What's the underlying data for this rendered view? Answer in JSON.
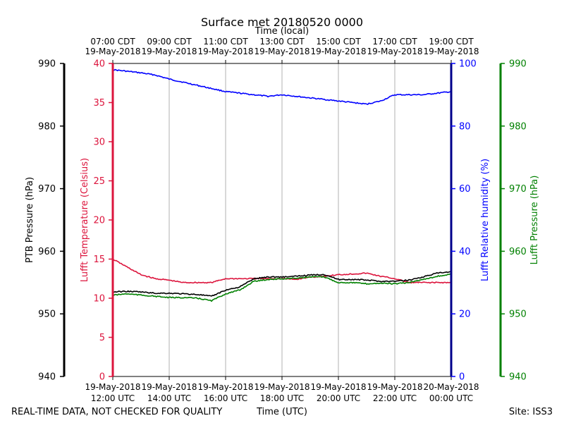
{
  "chart_data": {
    "type": "line",
    "title": "Surface met 20180520 0000",
    "top_axis_label": "Time (local)",
    "bottom_axis_label": "Time (UTC)",
    "footer_left": "REAL-TIME DATA, NOT CHECKED FOR QUALITY",
    "footer_right": "Site: ISS3",
    "x_range_hours_utc": [
      12,
      24
    ],
    "top_ticks": [
      {
        "hour": 12,
        "line1": "07:00 CDT",
        "line2": "19-May-2018"
      },
      {
        "hour": 14,
        "line1": "09:00 CDT",
        "line2": "19-May-2018"
      },
      {
        "hour": 16,
        "line1": "11:00 CDT",
        "line2": "19-May-2018"
      },
      {
        "hour": 18,
        "line1": "13:00 CDT",
        "line2": "19-May-2018"
      },
      {
        "hour": 20,
        "line1": "15:00 CDT",
        "line2": "19-May-2018"
      },
      {
        "hour": 22,
        "line1": "17:00 CDT",
        "line2": "19-May-2018"
      },
      {
        "hour": 24,
        "line1": "19:00 CDT",
        "line2": "19-May-2018"
      }
    ],
    "bottom_ticks": [
      {
        "hour": 12,
        "line1": "19-May-2018",
        "line2": "12:00 UTC"
      },
      {
        "hour": 14,
        "line1": "19-May-2018",
        "line2": "14:00 UTC"
      },
      {
        "hour": 16,
        "line1": "19-May-2018",
        "line2": "16:00 UTC"
      },
      {
        "hour": 18,
        "line1": "19-May-2018",
        "line2": "18:00 UTC"
      },
      {
        "hour": 20,
        "line1": "19-May-2018",
        "line2": "20:00 UTC"
      },
      {
        "hour": 22,
        "line1": "19-May-2018",
        "line2": "22:00 UTC"
      },
      {
        "hour": 24,
        "line1": "20-May-2018",
        "line2": "00:00 UTC"
      }
    ],
    "axes": {
      "ptb_pressure": {
        "label": "PTB Pressure (hPa)",
        "range": [
          940,
          990
        ],
        "ticks": [
          940,
          950,
          960,
          970,
          980,
          990
        ],
        "color": "#000000"
      },
      "temperature": {
        "label": "Lufft Temperature (Celsius)",
        "range": [
          0,
          40
        ],
        "ticks": [
          0,
          5,
          10,
          15,
          20,
          25,
          30,
          35,
          40
        ],
        "color": "#dc143c"
      },
      "humidity": {
        "label": "Lufft Relative humidity (%)",
        "range": [
          0,
          100
        ],
        "ticks": [
          0,
          20,
          40,
          60,
          80,
          100
        ],
        "color": "#0000ff"
      },
      "lufft_pressure": {
        "label": "Lufft Pressure (hPa)",
        "range": [
          940,
          990
        ],
        "ticks": [
          940,
          950,
          960,
          970,
          980,
          990
        ],
        "color": "#008000"
      }
    },
    "series": [
      {
        "name": "Lufft Relative humidity",
        "axis": "humidity",
        "color": "#0000ff",
        "x": [
          12.0,
          12.5,
          13.0,
          13.5,
          14.0,
          14.5,
          15.0,
          15.5,
          16.0,
          16.5,
          17.0,
          17.5,
          18.0,
          18.5,
          19.0,
          19.5,
          20.0,
          20.5,
          21.0,
          21.5,
          22.0,
          22.5,
          23.0,
          23.5,
          24.0
        ],
        "values": [
          98,
          97.5,
          97,
          96.3,
          95,
          94,
          93,
          92,
          91,
          90.5,
          90,
          89.5,
          90,
          89.5,
          89,
          88.5,
          88,
          87.5,
          87,
          88,
          90,
          90,
          90,
          90.5,
          91
        ]
      },
      {
        "name": "Lufft Temperature",
        "axis": "temperature",
        "color": "#dc143c",
        "x": [
          12.0,
          12.5,
          13.0,
          13.5,
          14.0,
          14.5,
          15.0,
          15.5,
          16.0,
          16.5,
          17.0,
          17.5,
          18.0,
          18.5,
          19.0,
          19.5,
          20.0,
          20.5,
          21.0,
          21.5,
          22.0,
          22.5,
          23.0,
          23.5,
          24.0
        ],
        "values": [
          15,
          14,
          13,
          12.5,
          12.3,
          12,
          12,
          12,
          12.5,
          12.5,
          12.5,
          12.5,
          12.5,
          12.4,
          12.7,
          12.8,
          13,
          13.1,
          13.2,
          12.8,
          12.5,
          12,
          12,
          12,
          12
        ]
      },
      {
        "name": "PTB Pressure",
        "axis": "ptb_pressure",
        "color": "#000000",
        "x": [
          12.0,
          12.5,
          13.0,
          13.5,
          14.0,
          14.5,
          15.0,
          15.5,
          16.0,
          16.5,
          17.0,
          17.5,
          18.0,
          18.5,
          19.0,
          19.5,
          20.0,
          20.5,
          21.0,
          21.5,
          22.0,
          22.5,
          23.0,
          23.5,
          24.0
        ],
        "values": [
          953.5,
          953.6,
          953.5,
          953.3,
          953.3,
          953.2,
          953.1,
          952.8,
          953.8,
          954.3,
          955.6,
          955.9,
          955.9,
          956.0,
          956.2,
          956.3,
          955.5,
          955.5,
          955.4,
          955.2,
          955.2,
          955.4,
          955.9,
          956.5,
          956.7
        ]
      },
      {
        "name": "Lufft Pressure",
        "axis": "lufft_pressure",
        "color": "#008000",
        "x": [
          12.0,
          12.5,
          13.0,
          13.5,
          14.0,
          14.5,
          15.0,
          15.5,
          16.0,
          16.5,
          17.0,
          17.5,
          18.0,
          18.5,
          19.0,
          19.5,
          20.0,
          20.5,
          21.0,
          21.5,
          22.0,
          22.5,
          23.0,
          23.5,
          24.0
        ],
        "values": [
          953.0,
          953.2,
          953.0,
          952.8,
          952.6,
          952.6,
          952.5,
          952.1,
          953.2,
          953.8,
          955.2,
          955.5,
          955.6,
          955.7,
          955.9,
          955.9,
          955.0,
          955.0,
          954.8,
          954.9,
          954.8,
          955.0,
          955.5,
          956.0,
          956.3
        ]
      }
    ]
  }
}
